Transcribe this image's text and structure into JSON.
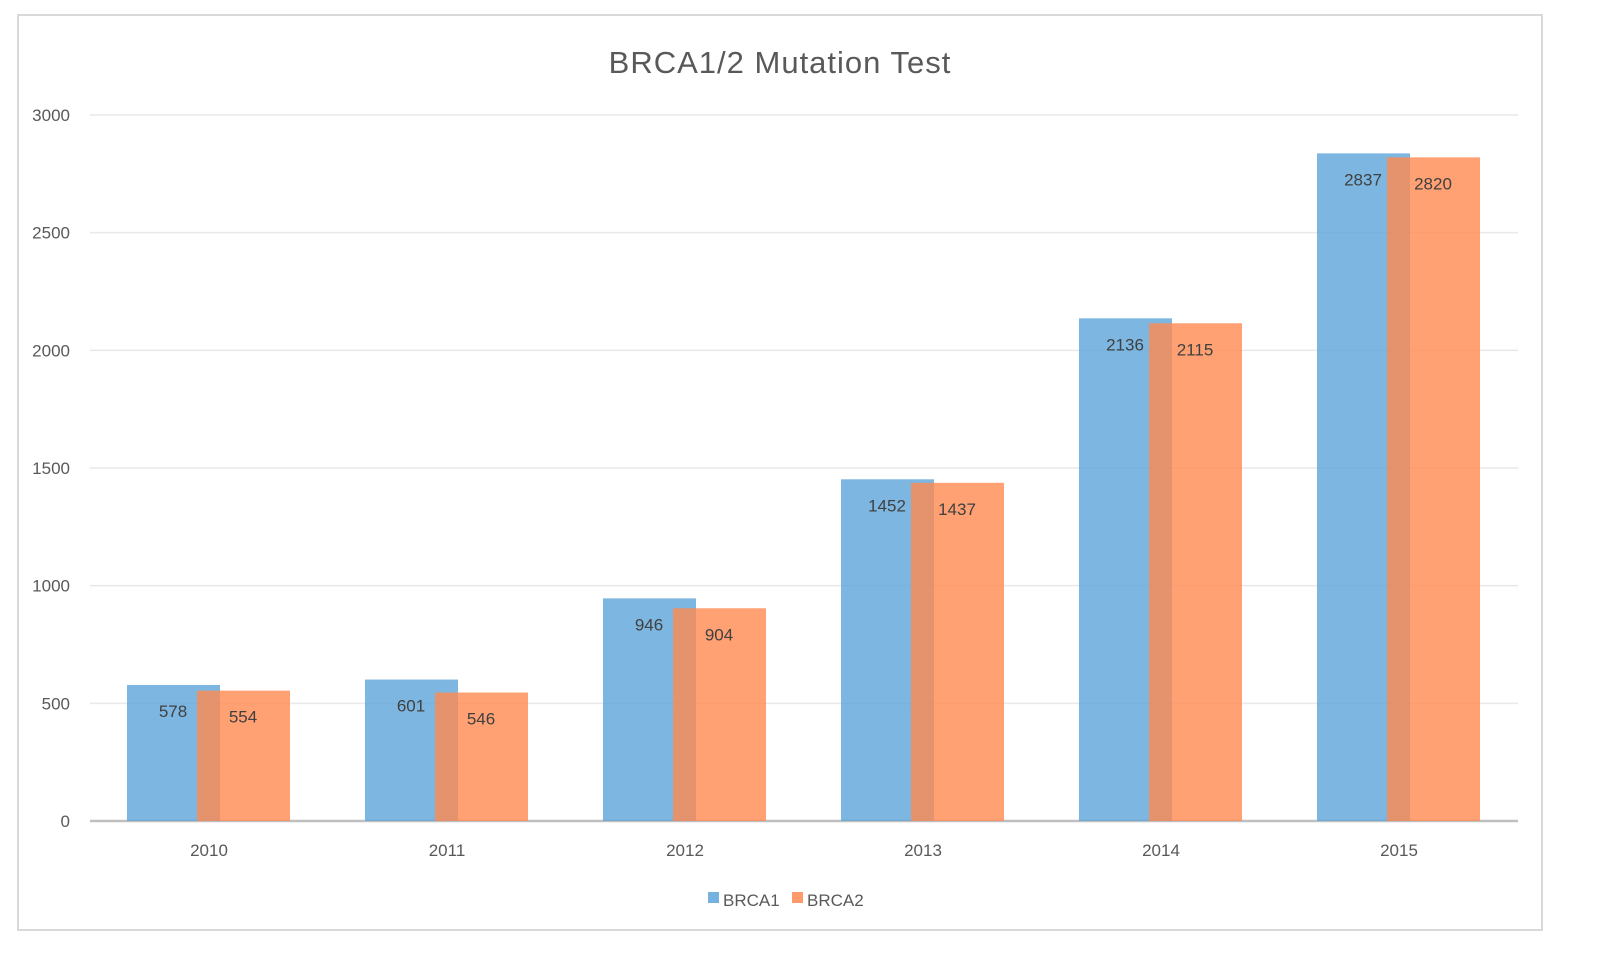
{
  "chart_data": {
    "type": "bar",
    "title": "BRCA1/2 Mutation Test",
    "xlabel": "",
    "ylabel": "",
    "categories": [
      "2010",
      "2011",
      "2012",
      "2013",
      "2014",
      "2015"
    ],
    "series": [
      {
        "name": "BRCA1",
        "color": "#5DA5DA",
        "values": [
          578,
          601,
          946,
          1452,
          2136,
          2837
        ]
      },
      {
        "name": "BRCA2",
        "color": "#FF8A50",
        "values": [
          554,
          546,
          904,
          1437,
          2115,
          2820
        ]
      }
    ],
    "ylim": [
      0,
      3000
    ],
    "yticks": [
      0,
      500,
      1000,
      1500,
      2000,
      2500,
      3000
    ],
    "grid": true,
    "legend_position": "bottom",
    "data_labels": true
  }
}
